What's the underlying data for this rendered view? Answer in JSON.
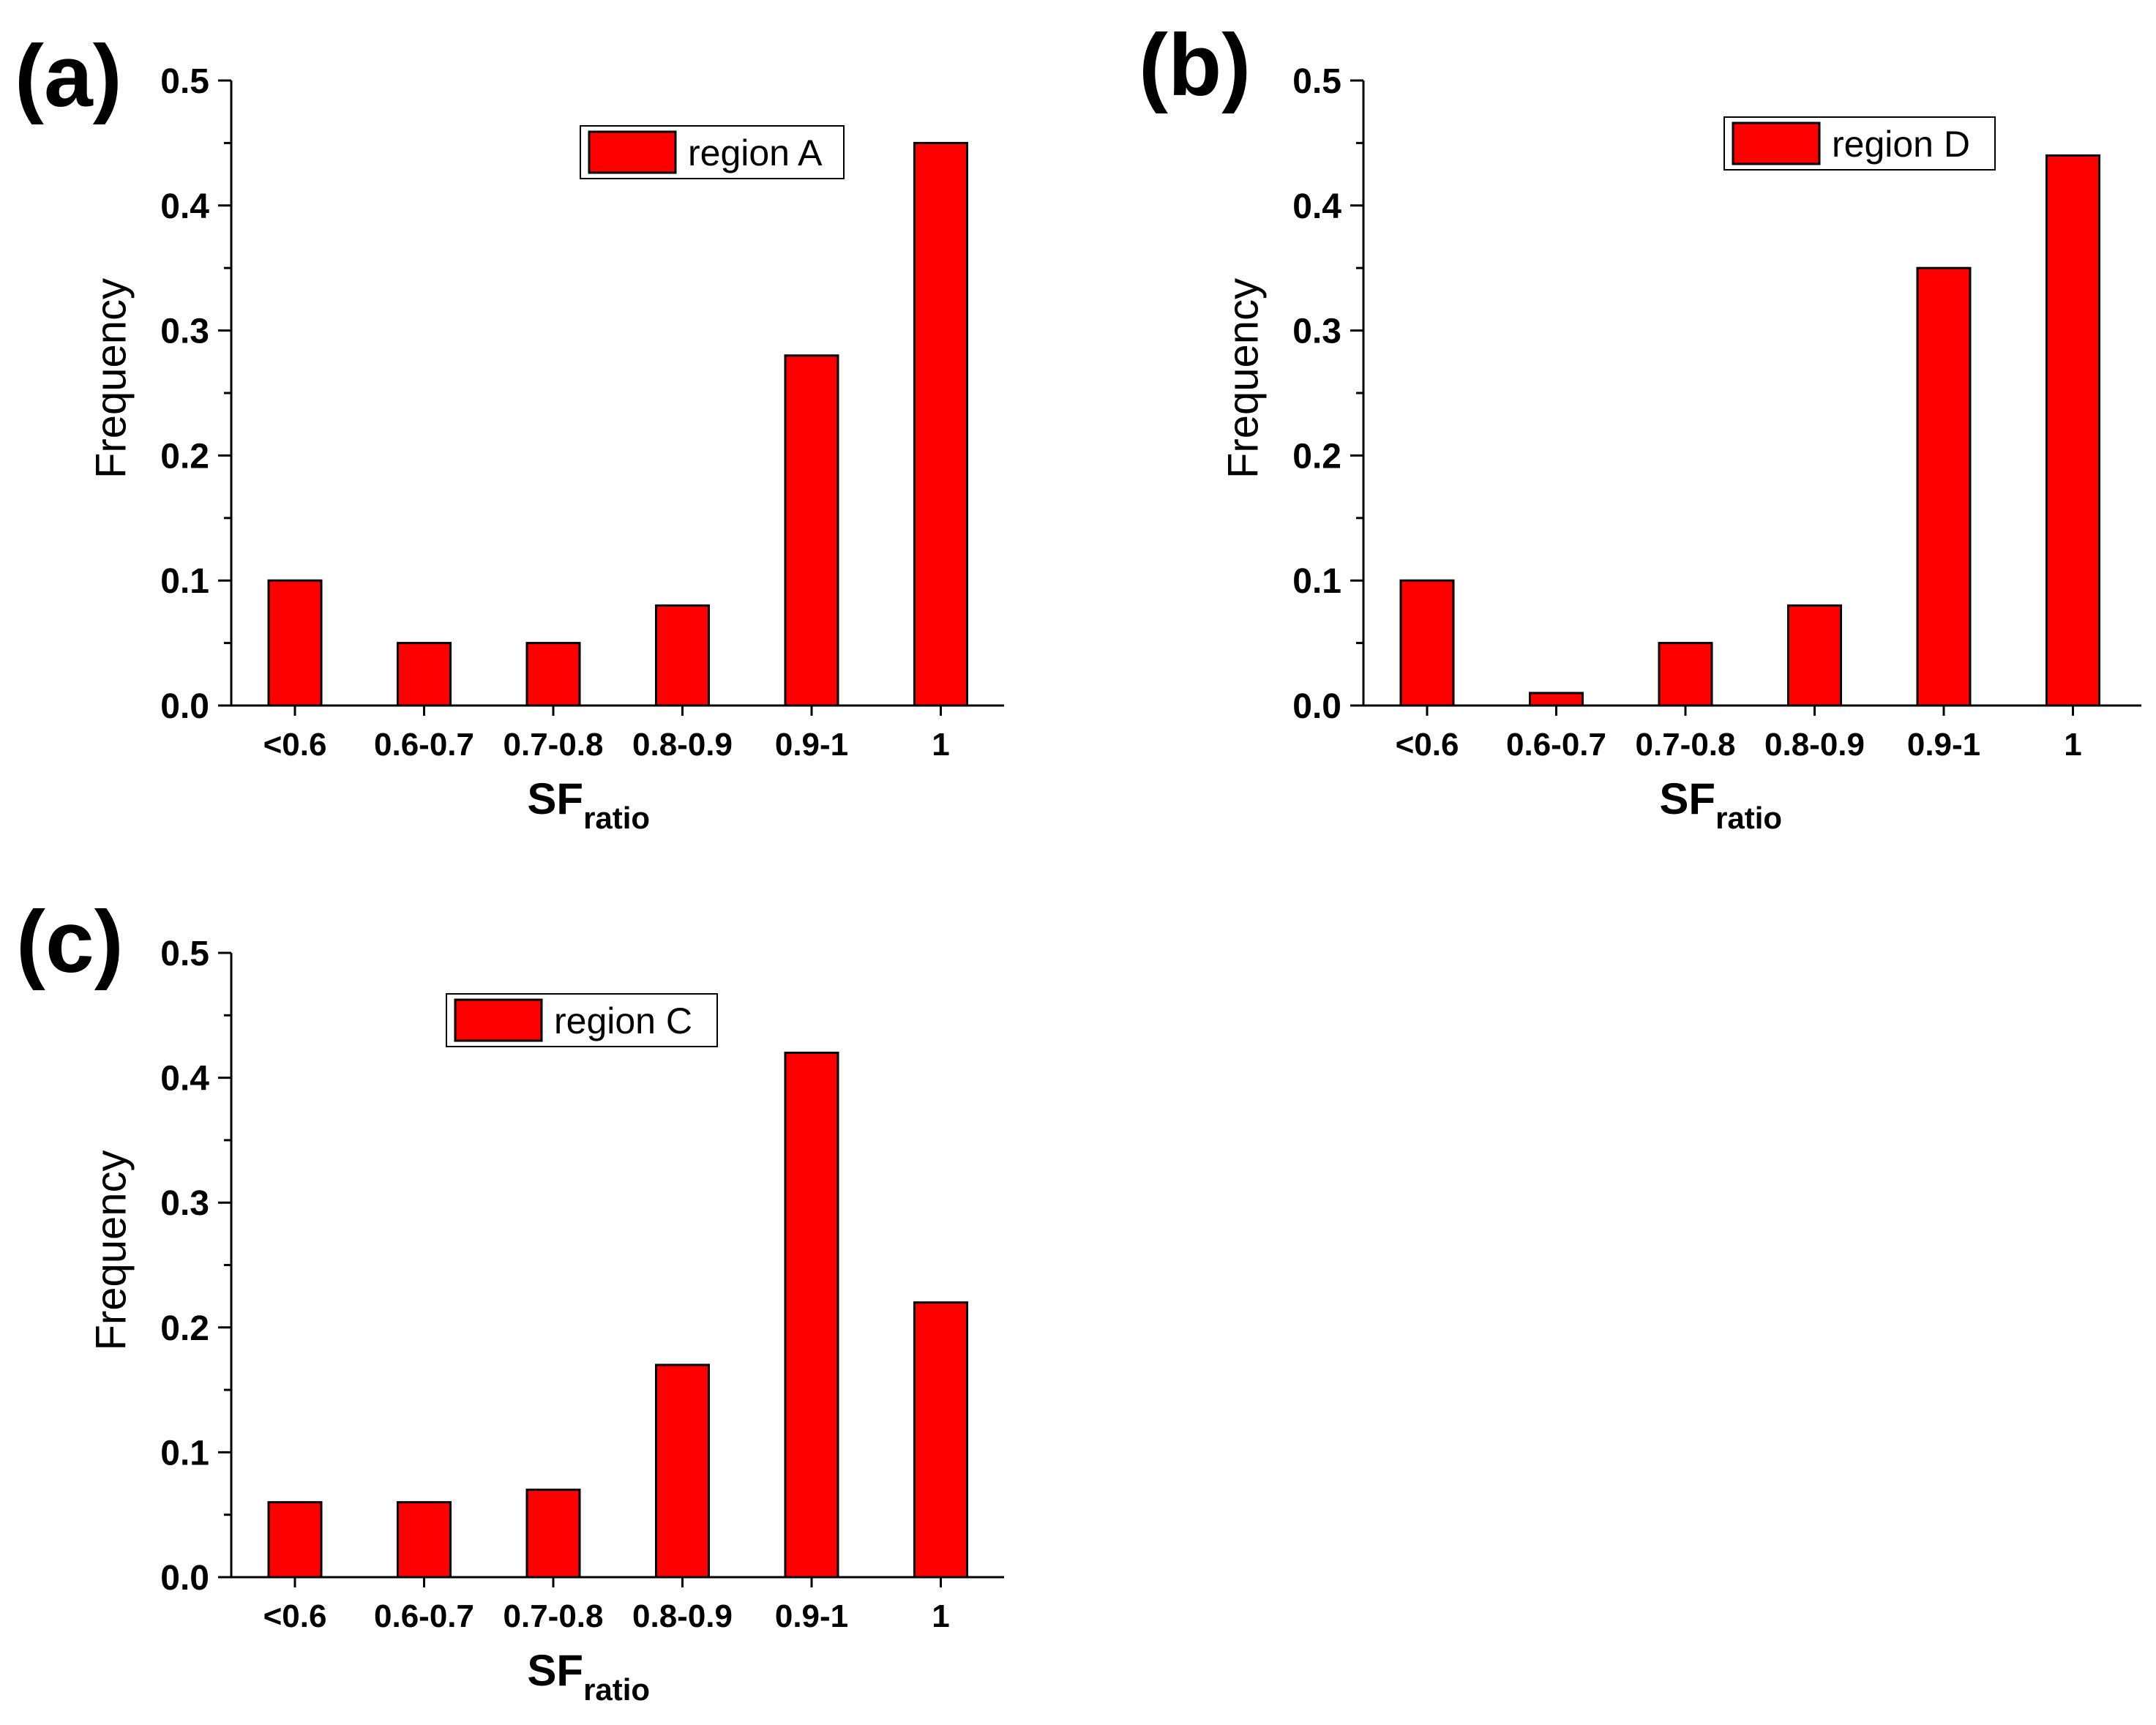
{
  "figure": {
    "panels": [
      "(a)",
      "(b)",
      "(c)"
    ]
  },
  "chart_data": [
    {
      "id": "a",
      "panel_label": "(a)",
      "type": "bar",
      "categories": [
        "<0.6",
        "0.6-0.7",
        "0.7-0.8",
        "0.8-0.9",
        "0.9-1",
        "1"
      ],
      "series": [
        {
          "name": "region A",
          "values": [
            0.1,
            0.05,
            0.05,
            0.08,
            0.28,
            0.45
          ],
          "color": "#ff0000"
        }
      ],
      "yticks": [
        "0.0",
        "0.1",
        "0.2",
        "0.3",
        "0.4",
        "0.5"
      ],
      "ylim": [
        0,
        0.5
      ],
      "ylabel": "Frequency",
      "xlabel": "SF",
      "xlabel_sub": "ratio",
      "legend_position": "top-right"
    },
    {
      "id": "b",
      "panel_label": "(b)",
      "type": "bar",
      "categories": [
        "<0.6",
        "0.6-0.7",
        "0.7-0.8",
        "0.8-0.9",
        "0.9-1",
        "1"
      ],
      "series": [
        {
          "name": "region D",
          "values": [
            0.1,
            0.01,
            0.05,
            0.08,
            0.35,
            0.44
          ],
          "color": "#ff0000"
        }
      ],
      "yticks": [
        "0.0",
        "0.1",
        "0.2",
        "0.3",
        "0.4",
        "0.5"
      ],
      "ylim": [
        0,
        0.5
      ],
      "ylabel": "Frequency",
      "xlabel": "SF",
      "xlabel_sub": "ratio",
      "legend_position": "top-right"
    },
    {
      "id": "c",
      "panel_label": "(c)",
      "type": "bar",
      "categories": [
        "<0.6",
        "0.6-0.7",
        "0.7-0.8",
        "0.8-0.9",
        "0.9-1",
        "1"
      ],
      "series": [
        {
          "name": "region C",
          "values": [
            0.06,
            0.06,
            0.07,
            0.17,
            0.42,
            0.22
          ],
          "color": "#ff0000"
        }
      ],
      "yticks": [
        "0.0",
        "0.1",
        "0.2",
        "0.3",
        "0.4",
        "0.5"
      ],
      "ylim": [
        0,
        0.5
      ],
      "ylabel": "Frequency",
      "xlabel": "SF",
      "xlabel_sub": "ratio",
      "legend_position": "top-center"
    }
  ]
}
